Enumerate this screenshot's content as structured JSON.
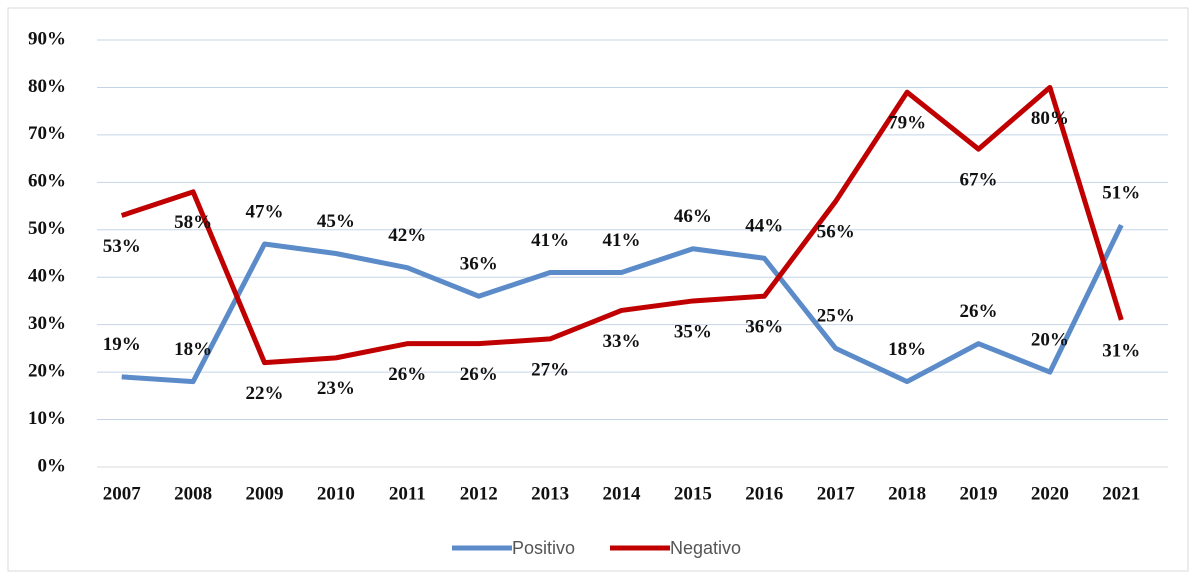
{
  "chart_data": {
    "type": "line",
    "categories": [
      "2007",
      "2008",
      "2009",
      "2010",
      "2011",
      "2012",
      "2013",
      "2014",
      "2015",
      "2016",
      "2017",
      "2018",
      "2019",
      "2020",
      "2021"
    ],
    "series": [
      {
        "name": "Positivo",
        "color": "#5b8bc8",
        "values": [
          19,
          18,
          47,
          45,
          42,
          36,
          41,
          41,
          46,
          44,
          25,
          18,
          26,
          20,
          51
        ],
        "value_labels": [
          "19%",
          "18%",
          "47%",
          "45%",
          "42%",
          "36%",
          "41%",
          "41%",
          "46%",
          "44%",
          "25%",
          "18%",
          "26%",
          "20%",
          "51%"
        ]
      },
      {
        "name": "Negativo",
        "color": "#c00000",
        "values": [
          53,
          58,
          22,
          23,
          26,
          26,
          27,
          33,
          35,
          36,
          56,
          79,
          67,
          80,
          31
        ],
        "value_labels": [
          "53%",
          "58%",
          "22%",
          "23%",
          "26%",
          "26%",
          "27%",
          "33%",
          "35%",
          "36%",
          "56%",
          "79%",
          "67%",
          "80%",
          "31%"
        ]
      }
    ],
    "ylim": [
      0,
      90
    ],
    "yticks": [
      {
        "value": 0,
        "label": "0%"
      },
      {
        "value": 10,
        "label": "10%"
      },
      {
        "value": 20,
        "label": "20%"
      },
      {
        "value": 30,
        "label": "30%"
      },
      {
        "value": 40,
        "label": "40%"
      },
      {
        "value": 50,
        "label": "50%"
      },
      {
        "value": 60,
        "label": "60%"
      },
      {
        "value": 70,
        "label": "70%"
      },
      {
        "value": 80,
        "label": "80%"
      },
      {
        "value": 90,
        "label": "90%"
      }
    ],
    "grid": true,
    "legend": "bottom"
  }
}
